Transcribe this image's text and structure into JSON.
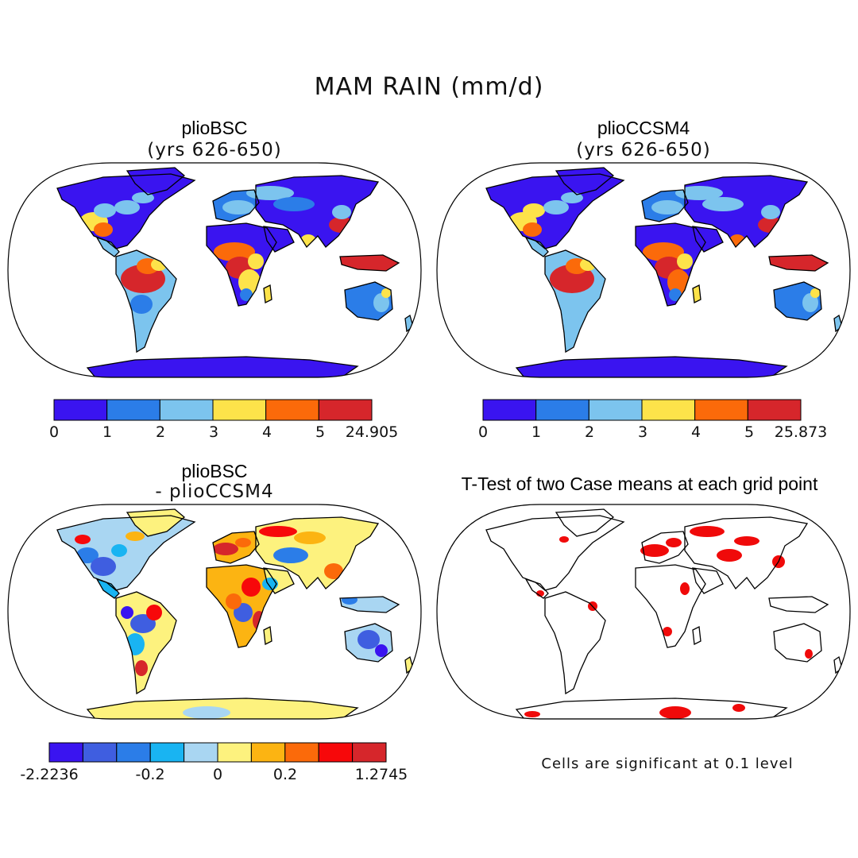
{
  "title": "MAM RAIN (mm/d)",
  "colors": {
    "seq": [
      "#3a14f0",
      "#2b7de8",
      "#7cc4ee",
      "#fde34a",
      "#fb6a0a",
      "#d6262b"
    ],
    "div": [
      "#3a14f0",
      "#3f5ee0",
      "#2b7de8",
      "#19b4f2",
      "#a9d6f2",
      "#fdf27e",
      "#fcb412",
      "#fb6a0a",
      "#f7080a",
      "#d6262b"
    ],
    "sig": "#f00a0a",
    "coast": "#000000"
  },
  "chart_data": [
    {
      "type": "heatmap",
      "name": "plioBSC",
      "title": "plioBSC",
      "subtitle": "(yrs 626-650)",
      "colorbar_ticks": [
        "0",
        "1",
        "2",
        "3",
        "4",
        "5",
        "24.905"
      ],
      "bin_edges": [
        0,
        1,
        2,
        3,
        4,
        5,
        24.905
      ]
    },
    {
      "type": "heatmap",
      "name": "plioCCSM4",
      "title": "plioCCSM4",
      "subtitle": "(yrs 626-650)",
      "colorbar_ticks": [
        "0",
        "1",
        "2",
        "3",
        "4",
        "5",
        "25.873"
      ],
      "bin_edges": [
        0,
        1,
        2,
        3,
        4,
        5,
        25.873
      ]
    },
    {
      "type": "heatmap",
      "name": "difference",
      "title": "plioBSC",
      "subtitle": "- plioCCSM4",
      "colorbar_ticks": [
        "-2.2236",
        "-0.2",
        "0",
        "0.2",
        "1.2745"
      ],
      "bin_edges": [
        -2.2236,
        -0.6,
        -0.4,
        -0.2,
        -0.1,
        0,
        0.1,
        0.2,
        0.4,
        0.6,
        1.2745
      ]
    },
    {
      "type": "heatmap",
      "name": "ttest",
      "title": "T-Test of two Case means at each grid point",
      "note": "Cells are significant at 0.1 level",
      "significance_level": 0.1
    }
  ]
}
